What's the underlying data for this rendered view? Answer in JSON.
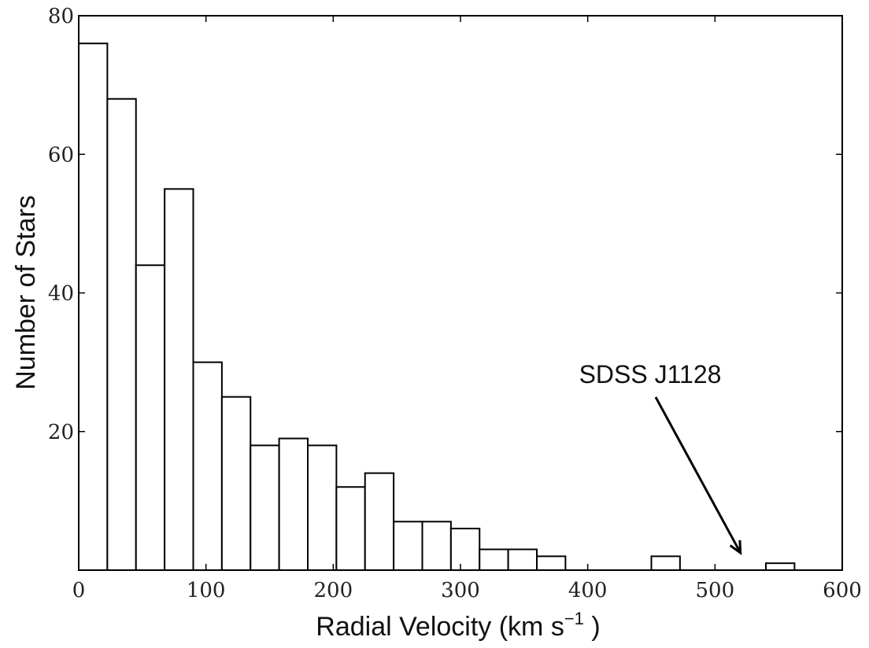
{
  "chart_data": {
    "type": "bar",
    "title": "",
    "xlabel": "Radial Velocity (km s",
    "xlabel_sup": "−1",
    "xlabel_close": " )",
    "ylabel": "Number of Stars",
    "xlim": [
      0,
      600
    ],
    "ylim": [
      0,
      80
    ],
    "xticks": [
      0,
      100,
      200,
      300,
      400,
      500,
      600
    ],
    "yticks": [
      20,
      40,
      60,
      80
    ],
    "grid": false,
    "bin_width": 22.5,
    "bins": [
      {
        "x0": 0,
        "value": 76
      },
      {
        "x0": 22.5,
        "value": 68
      },
      {
        "x0": 45,
        "value": 44
      },
      {
        "x0": 67.5,
        "value": 55
      },
      {
        "x0": 90,
        "value": 30
      },
      {
        "x0": 112.5,
        "value": 25
      },
      {
        "x0": 135,
        "value": 18
      },
      {
        "x0": 157.5,
        "value": 19
      },
      {
        "x0": 180,
        "value": 18
      },
      {
        "x0": 202.5,
        "value": 12
      },
      {
        "x0": 225,
        "value": 14
      },
      {
        "x0": 247.5,
        "value": 7
      },
      {
        "x0": 270,
        "value": 7
      },
      {
        "x0": 292.5,
        "value": 6
      },
      {
        "x0": 315,
        "value": 3
      },
      {
        "x0": 337.5,
        "value": 3
      },
      {
        "x0": 360,
        "value": 2
      },
      {
        "x0": 450,
        "value": 2
      },
      {
        "x0": 540,
        "value": 1
      }
    ],
    "annotation": {
      "text": "SDSS J1128",
      "target_x": 520,
      "target_y": 2.5
    }
  }
}
